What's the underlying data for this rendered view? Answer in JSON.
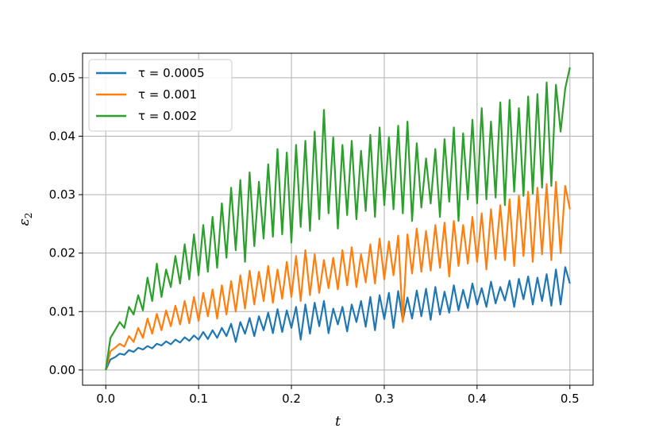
{
  "chart_data": {
    "type": "line",
    "title": "",
    "xlabel": "t",
    "ylabel_base": "ε",
    "ylabel_sub": "2",
    "xlim": [
      -0.025,
      0.525
    ],
    "ylim": [
      -0.0026,
      0.0542
    ],
    "xticks": [
      0.0,
      0.1,
      0.2,
      0.3,
      0.4,
      0.5
    ],
    "xtick_labels": [
      "0.0",
      "0.1",
      "0.2",
      "0.3",
      "0.4",
      "0.5"
    ],
    "yticks": [
      0.0,
      0.01,
      0.02,
      0.03,
      0.04,
      0.05
    ],
    "ytick_labels": [
      "0.00",
      "0.01",
      "0.02",
      "0.03",
      "0.04",
      "0.05"
    ],
    "grid": true,
    "legend_position": "top-left",
    "series": [
      {
        "name": "τ = 0.0005",
        "color": "#1f77b4",
        "x": [
          0.0,
          0.005,
          0.01,
          0.015,
          0.02,
          0.025,
          0.03,
          0.035,
          0.04,
          0.045,
          0.05,
          0.055,
          0.06,
          0.065,
          0.07,
          0.075,
          0.08,
          0.085,
          0.09,
          0.095,
          0.1,
          0.105,
          0.11,
          0.115,
          0.12,
          0.125,
          0.13,
          0.135,
          0.14,
          0.145,
          0.15,
          0.155,
          0.16,
          0.165,
          0.17,
          0.175,
          0.18,
          0.185,
          0.19,
          0.195,
          0.2,
          0.205,
          0.21,
          0.215,
          0.22,
          0.225,
          0.23,
          0.235,
          0.24,
          0.245,
          0.25,
          0.255,
          0.26,
          0.265,
          0.27,
          0.275,
          0.28,
          0.285,
          0.29,
          0.295,
          0.3,
          0.305,
          0.31,
          0.315,
          0.32,
          0.325,
          0.33,
          0.335,
          0.34,
          0.345,
          0.35,
          0.355,
          0.36,
          0.365,
          0.37,
          0.375,
          0.38,
          0.385,
          0.39,
          0.395,
          0.4,
          0.405,
          0.41,
          0.415,
          0.42,
          0.425,
          0.43,
          0.435,
          0.44,
          0.445,
          0.45,
          0.455,
          0.46,
          0.465,
          0.47,
          0.475,
          0.48,
          0.485,
          0.49,
          0.495,
          0.5
        ],
        "y": [
          0.0,
          0.0018,
          0.0022,
          0.0028,
          0.0026,
          0.0034,
          0.0031,
          0.0038,
          0.0035,
          0.0041,
          0.0037,
          0.0045,
          0.0042,
          0.0049,
          0.0044,
          0.0052,
          0.0047,
          0.0056,
          0.005,
          0.0059,
          0.0052,
          0.0065,
          0.0053,
          0.0068,
          0.0055,
          0.0072,
          0.0058,
          0.0079,
          0.0048,
          0.0082,
          0.0062,
          0.0089,
          0.0058,
          0.0092,
          0.0068,
          0.0098,
          0.0063,
          0.0104,
          0.0065,
          0.0102,
          0.0072,
          0.0108,
          0.0052,
          0.0112,
          0.0062,
          0.0115,
          0.0075,
          0.0118,
          0.0063,
          0.0105,
          0.0078,
          0.0108,
          0.0066,
          0.0112,
          0.0082,
          0.0118,
          0.0074,
          0.0125,
          0.0068,
          0.0128,
          0.0087,
          0.0132,
          0.0072,
          0.0135,
          0.0085,
          0.0124,
          0.0088,
          0.0136,
          0.0092,
          0.0139,
          0.0086,
          0.0142,
          0.0095,
          0.0134,
          0.0098,
          0.0145,
          0.0102,
          0.0137,
          0.0106,
          0.0148,
          0.0112,
          0.014,
          0.0108,
          0.0151,
          0.0114,
          0.0142,
          0.0119,
          0.0153,
          0.0108,
          0.0156,
          0.0121,
          0.016,
          0.0112,
          0.0158,
          0.0118,
          0.0164,
          0.011,
          0.0172,
          0.0112,
          0.0176,
          0.0148
        ]
      },
      {
        "name": "τ = 0.001",
        "color": "#ff7f0e",
        "x": [
          0.0,
          0.005,
          0.01,
          0.015,
          0.02,
          0.025,
          0.03,
          0.035,
          0.04,
          0.045,
          0.05,
          0.055,
          0.06,
          0.065,
          0.07,
          0.075,
          0.08,
          0.085,
          0.09,
          0.095,
          0.1,
          0.105,
          0.11,
          0.115,
          0.12,
          0.125,
          0.13,
          0.135,
          0.14,
          0.145,
          0.15,
          0.155,
          0.16,
          0.165,
          0.17,
          0.175,
          0.18,
          0.185,
          0.19,
          0.195,
          0.2,
          0.205,
          0.21,
          0.215,
          0.22,
          0.225,
          0.23,
          0.235,
          0.24,
          0.245,
          0.25,
          0.255,
          0.26,
          0.265,
          0.27,
          0.275,
          0.28,
          0.285,
          0.29,
          0.295,
          0.3,
          0.305,
          0.31,
          0.315,
          0.32,
          0.325,
          0.33,
          0.335,
          0.34,
          0.345,
          0.35,
          0.355,
          0.36,
          0.365,
          0.37,
          0.375,
          0.38,
          0.385,
          0.39,
          0.395,
          0.4,
          0.405,
          0.41,
          0.415,
          0.42,
          0.425,
          0.43,
          0.435,
          0.44,
          0.445,
          0.45,
          0.455,
          0.46,
          0.465,
          0.47,
          0.475,
          0.48,
          0.485,
          0.49,
          0.495,
          0.5
        ],
        "y": [
          0.0,
          0.0032,
          0.0038,
          0.0045,
          0.004,
          0.0058,
          0.0048,
          0.0072,
          0.0055,
          0.0088,
          0.0062,
          0.0096,
          0.0068,
          0.0102,
          0.0075,
          0.011,
          0.0078,
          0.0118,
          0.008,
          0.0125,
          0.0084,
          0.0132,
          0.0092,
          0.0138,
          0.0088,
          0.0145,
          0.0095,
          0.0152,
          0.01,
          0.0162,
          0.0105,
          0.017,
          0.0112,
          0.0168,
          0.0118,
          0.0178,
          0.0115,
          0.0172,
          0.0122,
          0.0185,
          0.0125,
          0.0195,
          0.0118,
          0.0205,
          0.0128,
          0.0198,
          0.0132,
          0.0188,
          0.014,
          0.0192,
          0.0138,
          0.0205,
          0.0145,
          0.021,
          0.0142,
          0.0198,
          0.015,
          0.0215,
          0.0148,
          0.0225,
          0.0155,
          0.022,
          0.0162,
          0.023,
          0.0082,
          0.0232,
          0.0165,
          0.0242,
          0.0168,
          0.0238,
          0.017,
          0.0248,
          0.0175,
          0.0252,
          0.016,
          0.0255,
          0.0178,
          0.0248,
          0.0182,
          0.0262,
          0.0185,
          0.0268,
          0.0172,
          0.0275,
          0.019,
          0.0282,
          0.0188,
          0.0292,
          0.0178,
          0.0298,
          0.0195,
          0.0305,
          0.0185,
          0.0312,
          0.0198,
          0.0318,
          0.0188,
          0.0322,
          0.02,
          0.0315,
          0.0275
        ]
      },
      {
        "name": "τ = 0.002",
        "color": "#2ca02c",
        "x": [
          0.0,
          0.005,
          0.01,
          0.015,
          0.02,
          0.025,
          0.03,
          0.035,
          0.04,
          0.045,
          0.05,
          0.055,
          0.06,
          0.065,
          0.07,
          0.075,
          0.08,
          0.085,
          0.09,
          0.095,
          0.1,
          0.105,
          0.11,
          0.115,
          0.12,
          0.125,
          0.13,
          0.135,
          0.14,
          0.145,
          0.15,
          0.155,
          0.16,
          0.165,
          0.17,
          0.175,
          0.18,
          0.185,
          0.19,
          0.195,
          0.2,
          0.205,
          0.21,
          0.215,
          0.22,
          0.225,
          0.23,
          0.235,
          0.24,
          0.245,
          0.25,
          0.255,
          0.26,
          0.265,
          0.27,
          0.275,
          0.28,
          0.285,
          0.29,
          0.295,
          0.3,
          0.305,
          0.31,
          0.315,
          0.32,
          0.325,
          0.33,
          0.335,
          0.34,
          0.345,
          0.35,
          0.355,
          0.36,
          0.365,
          0.37,
          0.375,
          0.38,
          0.385,
          0.39,
          0.395,
          0.4,
          0.405,
          0.41,
          0.415,
          0.42,
          0.425,
          0.43,
          0.435,
          0.44,
          0.445,
          0.45,
          0.455,
          0.46,
          0.465,
          0.47,
          0.475,
          0.48,
          0.485,
          0.49,
          0.495,
          0.5
        ],
        "y": [
          0.0,
          0.0055,
          0.0068,
          0.0082,
          0.0072,
          0.0108,
          0.0095,
          0.0128,
          0.0102,
          0.0158,
          0.0118,
          0.0182,
          0.0125,
          0.0172,
          0.0142,
          0.0195,
          0.0148,
          0.0215,
          0.0155,
          0.0232,
          0.0162,
          0.0248,
          0.0168,
          0.0262,
          0.0175,
          0.0285,
          0.0192,
          0.0312,
          0.0205,
          0.0325,
          0.0185,
          0.0338,
          0.0212,
          0.0322,
          0.0225,
          0.0352,
          0.0228,
          0.0378,
          0.0232,
          0.0372,
          0.0218,
          0.0385,
          0.0245,
          0.0392,
          0.0238,
          0.0408,
          0.0258,
          0.0445,
          0.0268,
          0.0398,
          0.0242,
          0.0385,
          0.0265,
          0.0392,
          0.0258,
          0.0375,
          0.0272,
          0.0402,
          0.0262,
          0.0415,
          0.0282,
          0.0398,
          0.0275,
          0.0418,
          0.0268,
          0.0425,
          0.0255,
          0.0388,
          0.0278,
          0.0362,
          0.0285,
          0.0378,
          0.0262,
          0.0395,
          0.0288,
          0.0415,
          0.0255,
          0.0405,
          0.0292,
          0.0428,
          0.0285,
          0.0448,
          0.0292,
          0.0425,
          0.0295,
          0.0458,
          0.0282,
          0.0462,
          0.0305,
          0.0448,
          0.0298,
          0.0468,
          0.0302,
          0.0472,
          0.0312,
          0.0492,
          0.0315,
          0.0488,
          0.0408,
          0.0482,
          0.0518
        ]
      }
    ]
  }
}
